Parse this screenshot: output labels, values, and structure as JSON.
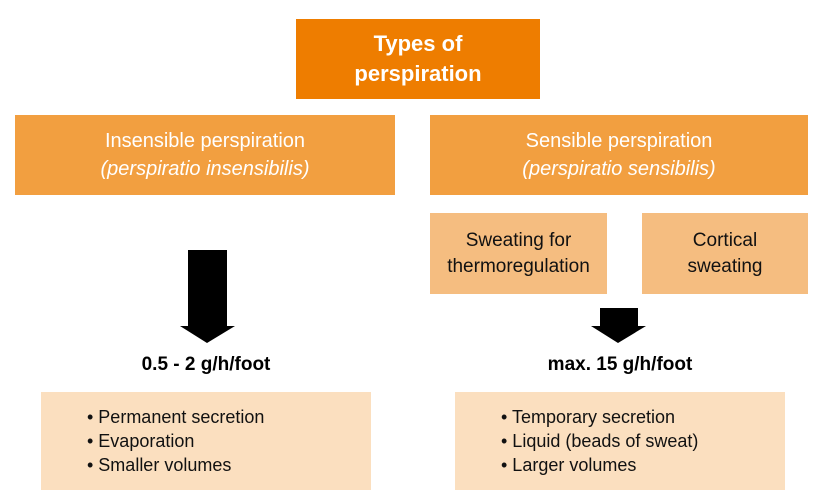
{
  "title": "Types of perspiration",
  "insensible": {
    "name": "Insensible perspiration",
    "latin": "(perspiratio insensibilis)",
    "rate": "0.5 - 2 g/h/foot",
    "features": [
      "• Permanent secretion",
      "• Evaporation",
      "• Smaller volumes"
    ]
  },
  "sensible": {
    "name": "Sensible perspiration",
    "latin": "(perspiratio sensibilis)",
    "rate": "max. 15 g/h/foot",
    "subtypes": [
      "Sweating for thermoregulation",
      "Cortical sweating"
    ],
    "features": [
      "• Temporary secretion",
      "• Liquid (beads of sweat)",
      "• Larger volumes"
    ]
  },
  "colors": {
    "title_box": "#ee7d00",
    "category_box": "#f29f40",
    "subtype_box": "#f5bd80",
    "feature_box": "#fbdfbf",
    "arrow": "#000000"
  }
}
